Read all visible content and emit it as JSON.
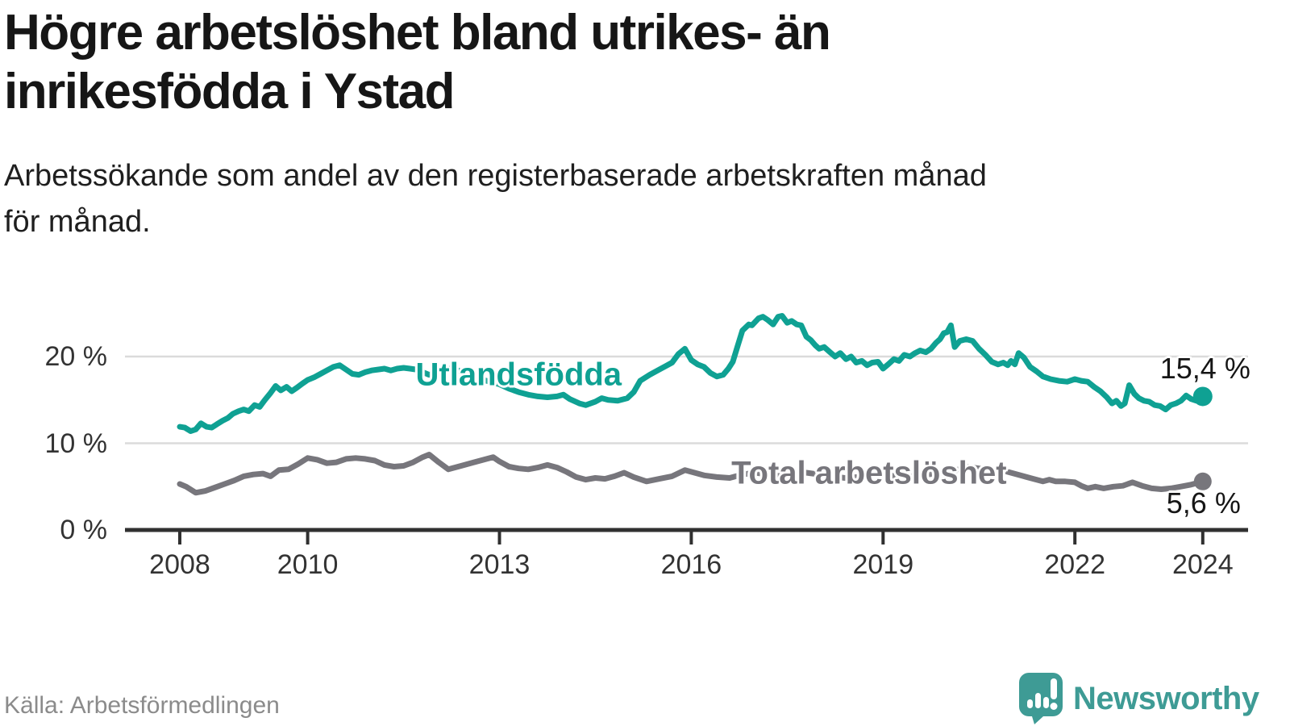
{
  "header": {
    "title": "Högre arbetslöshet bland utrikes- än inrikesfödda i Ystad",
    "title_line1": "Högre arbetslöshet bland utrikes- än",
    "title_line2": "inrikesfödda i Ystad",
    "subtitle_line1": "Arbetssökande som andel av den registerbaserade arbetskraften månad",
    "subtitle_line2": "för månad."
  },
  "footer": {
    "source": "Källa: Arbetsförmedlingen",
    "brand_name": "Newsworthy"
  },
  "colors": {
    "foreign_born_line": "#0FA193",
    "total_line": "#77767C",
    "gridline": "#DBDBDB",
    "axis": "#303030",
    "brand_teal": "#3E9B95",
    "value_label_text": "#161616"
  },
  "chart_data": {
    "type": "line",
    "title": "Högre arbetslöshet bland utrikes- än inrikesfödda i Ystad",
    "subtitle": "Arbetssökande som andel av den registerbaserade arbetskraften månad för månad.",
    "grid": "horizontal-only",
    "legend_position": "inline-labels-on-lines",
    "x_axis": {
      "range": [
        2008,
        2024.6
      ],
      "ticks": [
        {
          "value": 2008,
          "label": "2008"
        },
        {
          "value": 2010,
          "label": "2010"
        },
        {
          "value": 2013,
          "label": "2013"
        },
        {
          "value": 2016,
          "label": "2016"
        },
        {
          "value": 2019,
          "label": "2019"
        },
        {
          "value": 2022,
          "label": "2022"
        },
        {
          "value": 2024,
          "label": "2024"
        }
      ]
    },
    "y_axis": {
      "range": [
        0,
        26.5
      ],
      "unit": "%",
      "ticks": [
        {
          "value": 0,
          "label": "0 %"
        },
        {
          "value": 10,
          "label": "10 %"
        },
        {
          "value": 20,
          "label": "20 %"
        }
      ]
    },
    "series": [
      {
        "name": "Utlandsfödda",
        "color": "#0FA193",
        "end_value": 15.4,
        "end_label": "15,4 %",
        "label_anchor": {
          "year": 2013.3,
          "value": 17.9
        },
        "points": [
          [
            2008.0,
            11.9
          ],
          [
            2008.08,
            11.8
          ],
          [
            2008.17,
            11.4
          ],
          [
            2008.25,
            11.6
          ],
          [
            2008.33,
            12.3
          ],
          [
            2008.42,
            11.9
          ],
          [
            2008.5,
            11.8
          ],
          [
            2008.58,
            12.2
          ],
          [
            2008.67,
            12.6
          ],
          [
            2008.75,
            12.9
          ],
          [
            2008.83,
            13.4
          ],
          [
            2008.92,
            13.7
          ],
          [
            2009.0,
            13.9
          ],
          [
            2009.08,
            13.7
          ],
          [
            2009.17,
            14.4
          ],
          [
            2009.25,
            14.2
          ],
          [
            2009.33,
            15.0
          ],
          [
            2009.42,
            15.8
          ],
          [
            2009.5,
            16.6
          ],
          [
            2009.58,
            16.1
          ],
          [
            2009.67,
            16.5
          ],
          [
            2009.75,
            16.0
          ],
          [
            2009.83,
            16.4
          ],
          [
            2009.92,
            16.9
          ],
          [
            2010.0,
            17.3
          ],
          [
            2010.1,
            17.6
          ],
          [
            2010.2,
            18.0
          ],
          [
            2010.3,
            18.4
          ],
          [
            2010.4,
            18.8
          ],
          [
            2010.5,
            19.0
          ],
          [
            2010.6,
            18.5
          ],
          [
            2010.7,
            18.0
          ],
          [
            2010.8,
            17.9
          ],
          [
            2010.9,
            18.2
          ],
          [
            2011.0,
            18.4
          ],
          [
            2011.1,
            18.5
          ],
          [
            2011.2,
            18.6
          ],
          [
            2011.3,
            18.4
          ],
          [
            2011.4,
            18.6
          ],
          [
            2011.5,
            18.7
          ],
          [
            2011.6,
            18.6
          ],
          [
            2011.7,
            18.5
          ],
          [
            2011.8,
            18.2
          ],
          [
            2011.9,
            17.9
          ],
          [
            2012.0,
            18.1
          ],
          [
            2012.1,
            18.4
          ],
          [
            2012.2,
            18.6
          ],
          [
            2012.3,
            18.5
          ],
          [
            2012.4,
            18.3
          ],
          [
            2012.5,
            18.0
          ],
          [
            2012.6,
            17.6
          ],
          [
            2012.7,
            17.4
          ],
          [
            2012.8,
            17.2
          ],
          [
            2012.9,
            17.0
          ],
          [
            2013.0,
            16.8
          ],
          [
            2013.15,
            16.3
          ],
          [
            2013.3,
            15.9
          ],
          [
            2013.45,
            15.6
          ],
          [
            2013.6,
            15.4
          ],
          [
            2013.75,
            15.3
          ],
          [
            2013.9,
            15.4
          ],
          [
            2014.0,
            15.6
          ],
          [
            2014.1,
            15.1
          ],
          [
            2014.25,
            14.6
          ],
          [
            2014.35,
            14.4
          ],
          [
            2014.5,
            14.8
          ],
          [
            2014.6,
            15.2
          ],
          [
            2014.7,
            15.0
          ],
          [
            2014.85,
            14.9
          ],
          [
            2015.0,
            15.2
          ],
          [
            2015.1,
            15.9
          ],
          [
            2015.2,
            17.2
          ],
          [
            2015.35,
            17.9
          ],
          [
            2015.5,
            18.5
          ],
          [
            2015.6,
            18.9
          ],
          [
            2015.7,
            19.3
          ],
          [
            2015.8,
            20.3
          ],
          [
            2015.9,
            20.9
          ],
          [
            2016.0,
            19.6
          ],
          [
            2016.1,
            19.1
          ],
          [
            2016.2,
            18.8
          ],
          [
            2016.3,
            18.1
          ],
          [
            2016.4,
            17.7
          ],
          [
            2016.5,
            17.9
          ],
          [
            2016.58,
            18.6
          ],
          [
            2016.65,
            19.4
          ],
          [
            2016.72,
            21.1
          ],
          [
            2016.8,
            23.0
          ],
          [
            2016.9,
            23.7
          ],
          [
            2016.95,
            23.6
          ],
          [
            2017.05,
            24.4
          ],
          [
            2017.12,
            24.6
          ],
          [
            2017.2,
            24.2
          ],
          [
            2017.28,
            23.7
          ],
          [
            2017.36,
            24.6
          ],
          [
            2017.42,
            24.7
          ],
          [
            2017.5,
            23.9
          ],
          [
            2017.57,
            24.1
          ],
          [
            2017.65,
            23.7
          ],
          [
            2017.72,
            23.6
          ],
          [
            2017.8,
            22.3
          ],
          [
            2017.87,
            21.9
          ],
          [
            2017.94,
            21.3
          ],
          [
            2018.0,
            20.9
          ],
          [
            2018.08,
            21.1
          ],
          [
            2018.17,
            20.5
          ],
          [
            2018.25,
            20.0
          ],
          [
            2018.33,
            20.4
          ],
          [
            2018.42,
            19.7
          ],
          [
            2018.5,
            20.0
          ],
          [
            2018.58,
            19.3
          ],
          [
            2018.67,
            19.5
          ],
          [
            2018.75,
            19.0
          ],
          [
            2018.83,
            19.3
          ],
          [
            2018.92,
            19.4
          ],
          [
            2019.0,
            18.6
          ],
          [
            2019.08,
            19.1
          ],
          [
            2019.17,
            19.7
          ],
          [
            2019.25,
            19.5
          ],
          [
            2019.33,
            20.2
          ],
          [
            2019.42,
            20.0
          ],
          [
            2019.5,
            20.4
          ],
          [
            2019.58,
            20.7
          ],
          [
            2019.67,
            20.5
          ],
          [
            2019.75,
            20.9
          ],
          [
            2019.83,
            21.6
          ],
          [
            2019.89,
            22.0
          ],
          [
            2019.95,
            22.7
          ],
          [
            2020.0,
            22.8
          ],
          [
            2020.06,
            23.6
          ],
          [
            2020.12,
            21.1
          ],
          [
            2020.2,
            21.8
          ],
          [
            2020.3,
            22.0
          ],
          [
            2020.4,
            21.8
          ],
          [
            2020.5,
            20.9
          ],
          [
            2020.6,
            20.2
          ],
          [
            2020.7,
            19.4
          ],
          [
            2020.8,
            19.1
          ],
          [
            2020.88,
            19.3
          ],
          [
            2020.95,
            19.0
          ],
          [
            2021.0,
            19.5
          ],
          [
            2021.06,
            19.1
          ],
          [
            2021.12,
            20.4
          ],
          [
            2021.2,
            19.9
          ],
          [
            2021.3,
            18.8
          ],
          [
            2021.4,
            18.3
          ],
          [
            2021.5,
            17.7
          ],
          [
            2021.62,
            17.4
          ],
          [
            2021.75,
            17.2
          ],
          [
            2021.88,
            17.1
          ],
          [
            2022.0,
            17.4
          ],
          [
            2022.1,
            17.2
          ],
          [
            2022.2,
            17.1
          ],
          [
            2022.3,
            16.5
          ],
          [
            2022.4,
            16.0
          ],
          [
            2022.5,
            15.3
          ],
          [
            2022.58,
            14.6
          ],
          [
            2022.65,
            14.9
          ],
          [
            2022.72,
            14.3
          ],
          [
            2022.78,
            14.6
          ],
          [
            2022.85,
            16.7
          ],
          [
            2022.93,
            15.7
          ],
          [
            2023.0,
            15.2
          ],
          [
            2023.08,
            14.9
          ],
          [
            2023.16,
            14.8
          ],
          [
            2023.25,
            14.4
          ],
          [
            2023.33,
            14.3
          ],
          [
            2023.42,
            13.9
          ],
          [
            2023.5,
            14.4
          ],
          [
            2023.58,
            14.6
          ],
          [
            2023.66,
            14.9
          ],
          [
            2023.74,
            15.5
          ],
          [
            2023.82,
            15.1
          ],
          [
            2023.9,
            14.9
          ],
          [
            2023.95,
            15.2
          ],
          [
            2024.0,
            15.4
          ]
        ]
      },
      {
        "name": "Total arbetslöshet",
        "color": "#77767C",
        "end_value": 5.6,
        "end_label": "5,6 %",
        "label_anchor": {
          "year": 2018.78,
          "value": 6.5
        },
        "points": [
          [
            2008.0,
            5.3
          ],
          [
            2008.1,
            5.0
          ],
          [
            2008.25,
            4.3
          ],
          [
            2008.4,
            4.5
          ],
          [
            2008.55,
            4.9
          ],
          [
            2008.7,
            5.3
          ],
          [
            2008.85,
            5.7
          ],
          [
            2009.0,
            6.2
          ],
          [
            2009.15,
            6.4
          ],
          [
            2009.3,
            6.5
          ],
          [
            2009.42,
            6.2
          ],
          [
            2009.55,
            6.9
          ],
          [
            2009.7,
            7.0
          ],
          [
            2009.85,
            7.6
          ],
          [
            2010.0,
            8.3
          ],
          [
            2010.15,
            8.1
          ],
          [
            2010.3,
            7.7
          ],
          [
            2010.45,
            7.8
          ],
          [
            2010.6,
            8.2
          ],
          [
            2010.75,
            8.3
          ],
          [
            2010.9,
            8.2
          ],
          [
            2011.05,
            8.0
          ],
          [
            2011.2,
            7.5
          ],
          [
            2011.35,
            7.3
          ],
          [
            2011.5,
            7.4
          ],
          [
            2011.65,
            7.8
          ],
          [
            2011.8,
            8.4
          ],
          [
            2011.9,
            8.7
          ],
          [
            2012.05,
            7.8
          ],
          [
            2012.2,
            7.0
          ],
          [
            2012.4,
            7.4
          ],
          [
            2012.6,
            7.8
          ],
          [
            2012.8,
            8.2
          ],
          [
            2012.9,
            8.4
          ],
          [
            2013.0,
            7.9
          ],
          [
            2013.15,
            7.3
          ],
          [
            2013.3,
            7.1
          ],
          [
            2013.45,
            7.0
          ],
          [
            2013.6,
            7.2
          ],
          [
            2013.75,
            7.5
          ],
          [
            2013.9,
            7.2
          ],
          [
            2014.05,
            6.7
          ],
          [
            2014.2,
            6.1
          ],
          [
            2014.35,
            5.8
          ],
          [
            2014.5,
            6.0
          ],
          [
            2014.65,
            5.9
          ],
          [
            2014.8,
            6.2
          ],
          [
            2014.95,
            6.6
          ],
          [
            2015.1,
            6.1
          ],
          [
            2015.3,
            5.6
          ],
          [
            2015.5,
            5.9
          ],
          [
            2015.7,
            6.2
          ],
          [
            2015.9,
            6.9
          ],
          [
            2016.05,
            6.6
          ],
          [
            2016.2,
            6.3
          ],
          [
            2016.4,
            6.1
          ],
          [
            2016.6,
            6.0
          ],
          [
            2016.8,
            6.4
          ],
          [
            2017.0,
            6.6
          ],
          [
            2017.2,
            6.4
          ],
          [
            2017.4,
            6.2
          ],
          [
            2017.6,
            6.4
          ],
          [
            2017.8,
            6.6
          ],
          [
            2018.0,
            6.4
          ],
          [
            2018.2,
            6.2
          ],
          [
            2018.4,
            6.0
          ],
          [
            2018.6,
            6.1
          ],
          [
            2018.8,
            6.3
          ],
          [
            2019.0,
            6.4
          ],
          [
            2019.2,
            6.2
          ],
          [
            2019.4,
            6.1
          ],
          [
            2019.6,
            6.3
          ],
          [
            2019.8,
            6.5
          ],
          [
            2020.0,
            6.6
          ],
          [
            2020.15,
            6.9
          ],
          [
            2020.3,
            7.3
          ],
          [
            2020.5,
            7.1
          ],
          [
            2020.7,
            6.9
          ],
          [
            2020.9,
            6.8
          ],
          [
            2021.05,
            6.5
          ],
          [
            2021.2,
            6.2
          ],
          [
            2021.35,
            5.9
          ],
          [
            2021.5,
            5.6
          ],
          [
            2021.6,
            5.8
          ],
          [
            2021.7,
            5.6
          ],
          [
            2021.85,
            5.6
          ],
          [
            2022.0,
            5.5
          ],
          [
            2022.1,
            5.1
          ],
          [
            2022.2,
            4.8
          ],
          [
            2022.32,
            5.0
          ],
          [
            2022.45,
            4.8
          ],
          [
            2022.6,
            5.0
          ],
          [
            2022.75,
            5.1
          ],
          [
            2022.9,
            5.5
          ],
          [
            2023.05,
            5.1
          ],
          [
            2023.2,
            4.8
          ],
          [
            2023.35,
            4.7
          ],
          [
            2023.5,
            4.8
          ],
          [
            2023.65,
            5.0
          ],
          [
            2023.8,
            5.2
          ],
          [
            2023.9,
            5.4
          ],
          [
            2024.0,
            5.6
          ]
        ]
      }
    ]
  }
}
